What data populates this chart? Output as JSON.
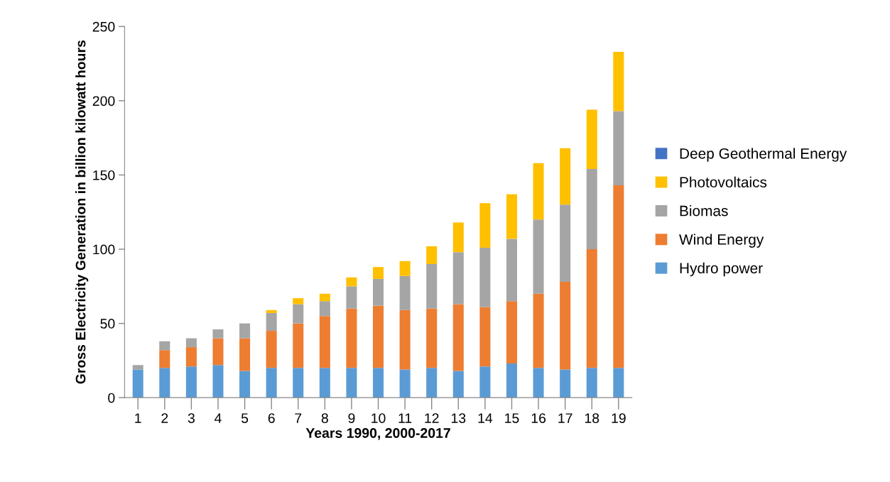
{
  "chart_data": {
    "type": "bar",
    "stacked": true,
    "xlabel": "Years 1990, 2000-2017",
    "ylabel": "Gross Electricity Generation in billion kilowatt hours",
    "categories": [
      "1",
      "2",
      "3",
      "4",
      "5",
      "6",
      "7",
      "8",
      "9",
      "10",
      "11",
      "12",
      "13",
      "14",
      "15",
      "16",
      "17",
      "18",
      "19"
    ],
    "series": [
      {
        "name": "Hydro power",
        "color": "#5b9bd5",
        "values": [
          19,
          20,
          21,
          22,
          18,
          20,
          20,
          20,
          20,
          20,
          19,
          20,
          18,
          21,
          23,
          20,
          19,
          20,
          20
        ]
      },
      {
        "name": "Wind Energy",
        "color": "#ed7d31",
        "values": [
          0,
          12,
          13,
          18,
          22,
          25,
          30,
          35,
          40,
          42,
          40,
          40,
          45,
          40,
          42,
          50,
          59,
          80,
          123
        ]
      },
      {
        "name": "Biomas",
        "color": "#a5a5a5",
        "values": [
          3,
          6,
          6,
          6,
          10,
          12,
          13,
          10,
          15,
          18,
          23,
          30,
          35,
          40,
          42,
          50,
          52,
          54,
          50
        ]
      },
      {
        "name": "Photovoltaics",
        "color": "#ffc000",
        "values": [
          0,
          0,
          0,
          0,
          0,
          2,
          4,
          5,
          6,
          8,
          10,
          12,
          20,
          30,
          30,
          38,
          38,
          40,
          40
        ]
      },
      {
        "name": "Deep Geothermal Energy",
        "color": "#4472c4",
        "values": [
          0,
          0,
          0,
          0,
          0,
          0,
          0,
          0,
          0,
          0,
          0,
          0,
          0,
          0,
          0,
          0,
          0,
          0,
          0
        ]
      }
    ],
    "ylim": [
      0,
      250
    ],
    "yticks": [
      0,
      50,
      100,
      150,
      200,
      250
    ],
    "grid": false,
    "legend": "right"
  }
}
